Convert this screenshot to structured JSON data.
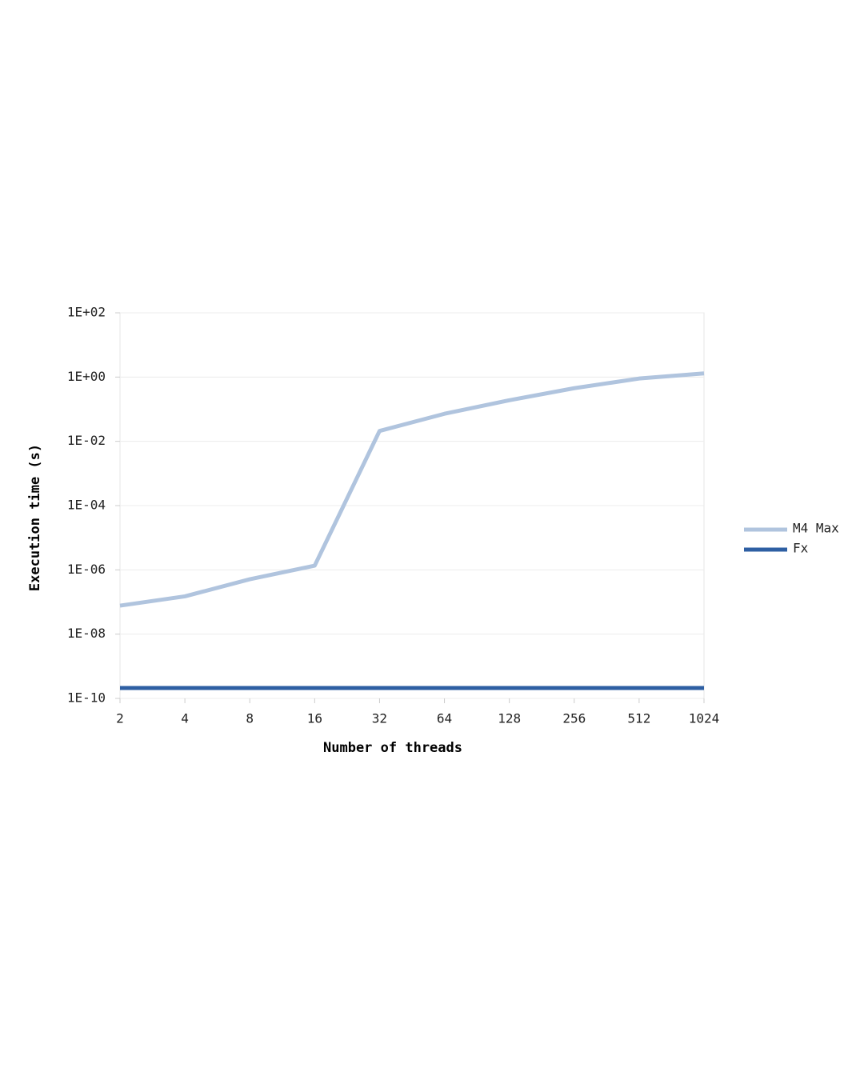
{
  "chart_data": {
    "type": "line",
    "x_label": "Number of threads",
    "y_label": "Execution time (s)",
    "categories": [
      "2",
      "4",
      "8",
      "16",
      "32",
      "64",
      "128",
      "256",
      "512",
      "1024"
    ],
    "series": [
      {
        "name": "M4 Max",
        "color": "#b0c4de",
        "values": [
          7.7e-08,
          1.5e-07,
          5.1e-07,
          1.35e-06,
          0.021,
          0.072,
          0.19,
          0.45,
          0.9,
          1.3
        ]
      },
      {
        "name": "Fx",
        "color": "#2e5fa3",
        "values": [
          2.1e-10,
          2.1e-10,
          2.1e-10,
          2.1e-10,
          2.1e-10,
          2.1e-10,
          2.1e-10,
          2.1e-10,
          2.1e-10,
          2.1e-10
        ]
      }
    ],
    "ylim": [
      1e-10,
      100
    ],
    "yticks": [
      {
        "value": 1e-10,
        "label": "1E-10"
      },
      {
        "value": 1e-08,
        "label": "1E-08"
      },
      {
        "value": 1e-06,
        "label": "1E-06"
      },
      {
        "value": 0.0001,
        "label": "1E-04"
      },
      {
        "value": 0.01,
        "label": "1E-02"
      },
      {
        "value": 1,
        "label": "1E+00"
      },
      {
        "value": 100,
        "label": "1E+02"
      }
    ],
    "y_log": true,
    "grid": true,
    "legend": "right"
  }
}
